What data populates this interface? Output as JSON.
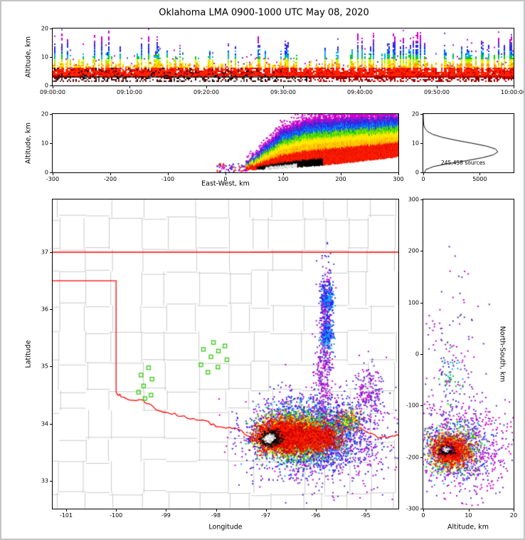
{
  "title": "Oklahoma LMA 0900-1000 UTC May 08, 2020",
  "palette": {
    "background": "#FFFFFF",
    "frame": "#C4C4C4",
    "axis": "#000000",
    "county_line": "#C9C9C9",
    "state_border": "#FF0000",
    "station_marker": "#44CC22",
    "histogram_line": "#000000",
    "density_ramp_low_to_high": [
      "#CC00CC",
      "#5533CC",
      "#2222EE",
      "#00AAFF",
      "#00CC00",
      "#AAEE00",
      "#FFE800",
      "#FF9900",
      "#FF2200",
      "#CC0000",
      "#000000",
      "#FFFFFF"
    ]
  },
  "chart_data": [
    {
      "id": "time_height",
      "type": "heatmap",
      "ylabel": "Altitude, km",
      "xticks": [
        "09:00:00",
        "09:10:00",
        "09:20:00",
        "09:30:00",
        "09:40:00",
        "09:50:00",
        "10:00:00"
      ],
      "yticks": [
        "0",
        "10",
        "20"
      ],
      "ylim_km": [
        0,
        20
      ],
      "description": "VHF lightning source density vs time; persistent dense red band near 3-7 km altitude with intermittent convective columns reaching 10-19 km, denser during 09:00-09:35",
      "persistent_band_km": [
        3,
        7
      ],
      "seed": 11
    },
    {
      "id": "ew_altitude",
      "type": "heatmap",
      "xlabel": "East-West, km",
      "ylabel": "Altitude, km",
      "xticks": [
        "-300",
        "-200",
        "-100",
        "0",
        "100",
        "200",
        "300"
      ],
      "yticks": [
        "0",
        "10",
        "20"
      ],
      "xlim_km": [
        -300,
        300
      ],
      "ylim_km": [
        0,
        20
      ],
      "description": "East-west altitude cross section; wedge of sources from x=40 km to 300 km, red core with black/white maximum near x=70-125 km at 1-3 km altitude, rainbow fringe up to 20 km",
      "top_profile_km": [
        [
          38,
          3
        ],
        [
          70,
          9.5
        ],
        [
          100,
          15
        ],
        [
          140,
          18
        ],
        [
          200,
          19
        ],
        [
          300,
          20
        ]
      ],
      "bottom_profile_km": [
        [
          38,
          1.2
        ],
        [
          100,
          1.7
        ],
        [
          160,
          2.6
        ],
        [
          220,
          3.8
        ],
        [
          300,
          5.6
        ]
      ],
      "black_core_x_km": [
        55,
        170
      ],
      "white_core_x_km": [
        70,
        125
      ],
      "seed": 23
    },
    {
      "id": "altitude_histogram",
      "type": "line",
      "annotation": "245,458 sources",
      "xticks": [
        "0",
        "5000"
      ],
      "yticks": [
        "0",
        "10",
        "20"
      ],
      "xlim": [
        0,
        8000
      ],
      "ylim_km": [
        0,
        20
      ],
      "alt_km": [
        0,
        1,
        2,
        3,
        4,
        5,
        6,
        7,
        8,
        9,
        10,
        11,
        12,
        13,
        14,
        15,
        16,
        17,
        18,
        19,
        20
      ],
      "counts": [
        100,
        250,
        900,
        2200,
        3800,
        5200,
        6200,
        6600,
        6400,
        5600,
        4300,
        2900,
        1700,
        850,
        380,
        160,
        60,
        25,
        10,
        3,
        0
      ]
    },
    {
      "id": "plan_view_map",
      "type": "scatter",
      "xlabel": "Longitude",
      "ylabel": "Latitude",
      "xticks": [
        "-101",
        "-100",
        "-99",
        "-98",
        "-97",
        "-96",
        "-95"
      ],
      "yticks": [
        "33",
        "34",
        "35",
        "36",
        "37"
      ],
      "lon_range": [
        -101.271,
        -94.345
      ],
      "lat_range": [
        32.514,
        37.922
      ],
      "state_border": {
        "north_border_lat": 37.0,
        "panhandle_border_lat": 36.5,
        "west_border_lon": -100.0,
        "west_border_lat_range": [
          34.56,
          36.5
        ],
        "red_river_lon_lat": [
          [
            -100.0,
            34.56
          ],
          [
            -99.9,
            34.47
          ],
          [
            -99.7,
            34.41
          ],
          [
            -99.5,
            34.42
          ],
          [
            -99.35,
            34.35
          ],
          [
            -99.15,
            34.23
          ],
          [
            -98.95,
            34.19
          ],
          [
            -98.7,
            34.13
          ],
          [
            -98.45,
            34.09
          ],
          [
            -98.2,
            34.05
          ],
          [
            -98.0,
            33.95
          ],
          [
            -97.8,
            33.92
          ],
          [
            -97.55,
            33.9
          ],
          [
            -97.3,
            33.77
          ],
          [
            -97.1,
            33.74
          ],
          [
            -96.9,
            33.84
          ],
          [
            -96.7,
            33.7
          ],
          [
            -96.5,
            33.7
          ],
          [
            -96.3,
            33.76
          ],
          [
            -96.1,
            33.82
          ],
          [
            -95.9,
            33.86
          ],
          [
            -95.7,
            33.84
          ],
          [
            -95.45,
            33.87
          ],
          [
            -95.2,
            33.93
          ],
          [
            -95.0,
            33.86
          ],
          [
            -94.75,
            33.75
          ],
          [
            -94.5,
            33.78
          ],
          [
            -94.34,
            33.8
          ]
        ]
      },
      "county_grid_seed": 5,
      "lma_stations_lon_lat": [
        [
          -98.05,
          35.42
        ],
        [
          -97.82,
          35.36
        ],
        [
          -98.25,
          35.3
        ],
        [
          -97.95,
          35.27
        ],
        [
          -98.1,
          35.17
        ],
        [
          -97.78,
          35.12
        ],
        [
          -98.3,
          35.03
        ],
        [
          -97.96,
          34.99
        ],
        [
          -98.16,
          34.9
        ],
        [
          -99.35,
          34.98
        ],
        [
          -99.5,
          34.85
        ],
        [
          -99.28,
          34.78
        ],
        [
          -99.45,
          34.66
        ],
        [
          -99.55,
          34.55
        ],
        [
          -99.3,
          34.5
        ],
        [
          -99.42,
          34.44
        ]
      ],
      "density_groups": [
        {
          "cx": -95.7,
          "cy": 33.7,
          "sx": 0.85,
          "sy": 0.5,
          "n": 420,
          "colors": [
            "#CC00CC",
            "#5533CC"
          ]
        },
        {
          "cx": -96.05,
          "cy": 33.8,
          "sx": 0.6,
          "sy": 0.32,
          "n": 1900,
          "colors": [
            "#CC00CC",
            "#5533CC",
            "#2222EE"
          ]
        },
        {
          "cx": -96.2,
          "cy": 33.8,
          "sx": 0.48,
          "sy": 0.26,
          "n": 1400,
          "colors": [
            "#2222EE",
            "#00AAFF"
          ]
        },
        {
          "cx": -96.35,
          "cy": 33.8,
          "sx": 0.38,
          "sy": 0.2,
          "n": 1200,
          "colors": [
            "#00CC00",
            "#AAEE00"
          ]
        },
        {
          "cx": -96.5,
          "cy": 33.79,
          "sx": 0.3,
          "sy": 0.16,
          "n": 1000,
          "colors": [
            "#FFE800",
            "#FF9900"
          ]
        },
        {
          "cx": -96.6,
          "cy": 33.78,
          "sx": 0.27,
          "sy": 0.13,
          "n": 2400,
          "colors": [
            "#FF2200",
            "#CC0000"
          ]
        },
        {
          "cx": -95.95,
          "cy": 33.76,
          "sx": 0.22,
          "sy": 0.12,
          "n": 800,
          "colors": [
            "#FF2200",
            "#CC0000"
          ]
        },
        {
          "cx": -95.35,
          "cy": 34.05,
          "sx": 0.13,
          "sy": 0.1,
          "n": 220,
          "colors": [
            "#FF2200",
            "#FFE800",
            "#00CC00",
            "#2222EE"
          ]
        },
        {
          "cx": -96.9,
          "cy": 33.74,
          "sx": 0.1,
          "sy": 0.06,
          "n": 430,
          "colors": [
            "#000000",
            "#1A1A1A"
          ]
        },
        {
          "cx": -96.93,
          "cy": 33.74,
          "sx": 0.045,
          "sy": 0.03,
          "n": 150,
          "colors": [
            "#FFFFFF",
            "#CCCCCC"
          ]
        },
        {
          "cx": -95.78,
          "cy": 35.9,
          "sx": 0.07,
          "sy": 0.42,
          "n": 420,
          "colors": [
            "#CC00CC",
            "#2222EE",
            "#5533CC"
          ]
        },
        {
          "cx": -95.85,
          "cy": 34.8,
          "sx": 0.09,
          "sy": 0.38,
          "n": 240,
          "colors": [
            "#CC00CC",
            "#5533CC"
          ]
        },
        {
          "cx": -95.78,
          "cy": 35.55,
          "sx": 0.06,
          "sy": 0.12,
          "n": 150,
          "colors": [
            "#2222EE",
            "#00AAFF"
          ]
        },
        {
          "cx": -95.75,
          "cy": 36.18,
          "sx": 0.06,
          "sy": 0.1,
          "n": 130,
          "colors": [
            "#2222EE",
            "#00AAFF"
          ]
        },
        {
          "cx": -94.95,
          "cy": 34.55,
          "sx": 0.13,
          "sy": 0.24,
          "n": 170,
          "colors": [
            "#CC00CC",
            "#5533CC"
          ]
        }
      ],
      "seed": 99
    },
    {
      "id": "ns_altitude",
      "type": "scatter",
      "xlabel": "Altitude, km",
      "ylabel": "North-South, km",
      "xticks": [
        "0",
        "10",
        "20"
      ],
      "yticks": [
        "300",
        "200",
        "100",
        "0",
        "-100",
        "-200",
        "-300"
      ],
      "xlim_km": [
        0,
        20
      ],
      "ylim_km": [
        -300,
        300
      ],
      "density_groups": [
        {
          "cx": 8,
          "cy": -185,
          "sx": 5.5,
          "sy": 40,
          "n": 650,
          "colors": [
            "#CC00CC",
            "#5533CC"
          ]
        },
        {
          "cx": 7,
          "cy": -185,
          "sx": 3.6,
          "sy": 27,
          "n": 420,
          "colors": [
            "#2222EE",
            "#00AAFF"
          ]
        },
        {
          "cx": 6.5,
          "cy": -186,
          "sx": 2.9,
          "sy": 21,
          "n": 360,
          "colors": [
            "#00CC00",
            "#AAEE00"
          ]
        },
        {
          "cx": 6.2,
          "cy": -187,
          "sx": 2.4,
          "sy": 17,
          "n": 320,
          "colors": [
            "#FFE800",
            "#FF9900"
          ]
        },
        {
          "cx": 6.0,
          "cy": -188,
          "sx": 1.9,
          "sy": 13,
          "n": 900,
          "colors": [
            "#FF2200",
            "#CC0000"
          ]
        },
        {
          "cx": 5.2,
          "cy": -186,
          "sx": 0.8,
          "sy": 5,
          "n": 110,
          "colors": [
            "#000000"
          ]
        },
        {
          "cx": 5.0,
          "cy": -185,
          "sx": 0.4,
          "sy": 2.5,
          "n": 32,
          "colors": [
            "#FFFFFF",
            "#CCCCCC"
          ]
        },
        {
          "cx": 6,
          "cy": -80,
          "sx": 3.5,
          "sy": 110,
          "n": 240,
          "colors": [
            "#CC00CC",
            "#5533CC"
          ]
        },
        {
          "cx": 13.5,
          "cy": -190,
          "sx": 4,
          "sy": 45,
          "n": 90,
          "colors": [
            "#CC00CC"
          ]
        },
        {
          "cx": 6,
          "cy": -45,
          "sx": 1.5,
          "sy": 25,
          "n": 40,
          "colors": [
            "#00CC00",
            "#00AAFF",
            "#2222EE"
          ]
        }
      ],
      "seed": 42
    }
  ]
}
